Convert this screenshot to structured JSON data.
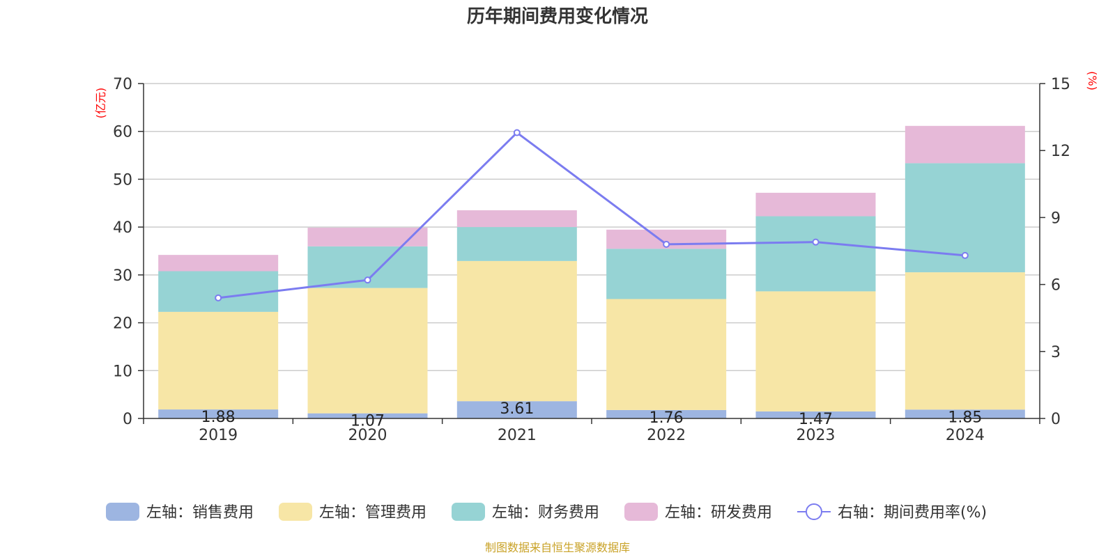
{
  "chart_data": {
    "type": "bar",
    "title": "历年期间费用变化情况",
    "categories": [
      "2019",
      "2020",
      "2021",
      "2022",
      "2023",
      "2024"
    ],
    "left_axis": {
      "unit": "(亿元)",
      "ylim": [
        0,
        70
      ],
      "ticks": [
        "0",
        "10",
        "20",
        "30",
        "40",
        "50",
        "60",
        "70"
      ]
    },
    "right_axis": {
      "unit": "(%)",
      "ylim": [
        0,
        15
      ],
      "ticks": [
        "0",
        "3",
        "6",
        "9",
        "12",
        "15"
      ]
    },
    "series": [
      {
        "name": "左轴：销售费用",
        "axis": "left",
        "color": "#9db5e1",
        "values": [
          1.88,
          1.07,
          3.61,
          1.76,
          1.47,
          1.85
        ],
        "labels": [
          "1.88",
          "1.07",
          "3.61",
          "1.76",
          "1.47",
          "1.85"
        ]
      },
      {
        "name": "左轴：管理费用",
        "axis": "left",
        "color": "#f7e6a6",
        "values": [
          20.4,
          26.2,
          29.3,
          23.2,
          25.1,
          28.7
        ]
      },
      {
        "name": "左轴：财务费用",
        "axis": "left",
        "color": "#96d3d4",
        "values": [
          8.5,
          8.7,
          7.1,
          10.5,
          15.7,
          22.8
        ]
      },
      {
        "name": "左轴：研发费用",
        "axis": "left",
        "color": "#e6b9d8",
        "values": [
          3.4,
          3.9,
          3.5,
          4.0,
          4.9,
          7.8
        ]
      },
      {
        "name": "右轴：期间费用率(%)",
        "axis": "right",
        "type": "line",
        "color": "#7b7cf0",
        "values": [
          5.4,
          6.2,
          12.8,
          7.8,
          7.9,
          7.3
        ]
      }
    ],
    "grid": true,
    "legend_position": "bottom"
  },
  "footer": {
    "source": "制图数据来自恒生聚源数据库"
  }
}
